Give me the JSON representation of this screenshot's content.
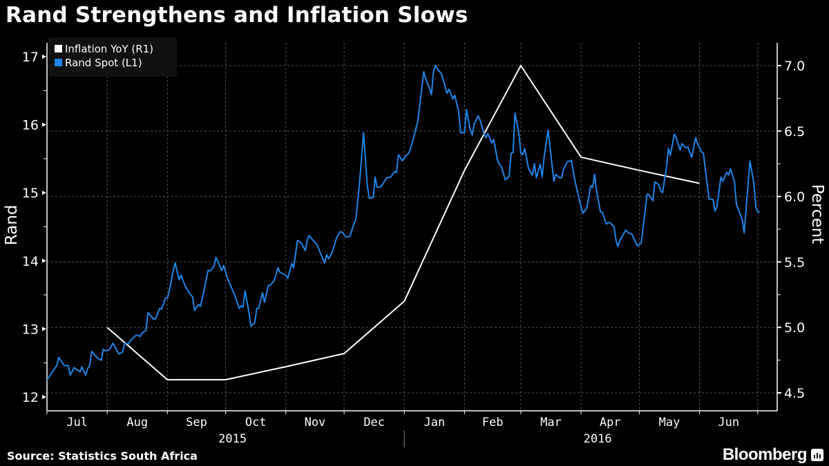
{
  "title": "Rand Strengthens and Inflation Slows",
  "source": "Source: Statistics South Africa",
  "brand": "Bloomberg",
  "chart_data": {
    "type": "line",
    "title": "Rand Strengthens and Inflation Slows",
    "x_range": [
      "2015-07-01",
      "2016-07-11"
    ],
    "x_month_labels": [
      "Jul",
      "Aug",
      "Sep",
      "Oct",
      "Nov",
      "Dec",
      "Jan",
      "Feb",
      "Mar",
      "Apr",
      "May",
      "Jun"
    ],
    "x_year_labels": [
      "2015",
      "2016"
    ],
    "y_left": {
      "label": "Rand",
      "range": [
        12,
        17
      ],
      "ticks": [
        "12",
        "13",
        "14",
        "15",
        "16",
        "17"
      ]
    },
    "y_right": {
      "label": "Percent",
      "range": [
        4.5,
        7.0
      ],
      "ticks": [
        "4.5",
        "5.0",
        "5.5",
        "6.0",
        "6.5",
        "7.0"
      ]
    },
    "grid": true,
    "legend_placement": "top-left",
    "legend": [
      "Inflation YoY (R1)",
      "Rand Spot (L1)"
    ],
    "series": [
      {
        "name": "Inflation YoY (R1)",
        "axis": "right",
        "color": "#ffffff",
        "points": [
          [
            "2015-08-01",
            5.0
          ],
          [
            "2015-09-01",
            4.6
          ],
          [
            "2015-10-01",
            4.6
          ],
          [
            "2015-11-01",
            4.7
          ],
          [
            "2015-12-01",
            4.8
          ],
          [
            "2016-01-01",
            5.2
          ],
          [
            "2016-02-01",
            6.2
          ],
          [
            "2016-03-01",
            7.0
          ],
          [
            "2016-04-01",
            6.3
          ],
          [
            "2016-05-01",
            6.2
          ],
          [
            "2016-06-01",
            6.1
          ]
        ]
      },
      {
        "name": "Rand Spot (L1)",
        "axis": "left",
        "color": "#1e86e8",
        "points": [
          [
            "2015-07-01",
            12.25
          ],
          [
            "2015-07-06",
            12.46
          ],
          [
            "2015-07-07",
            12.58
          ],
          [
            "2015-07-10",
            12.46
          ],
          [
            "2015-07-12",
            12.46
          ],
          [
            "2015-07-13",
            12.32
          ],
          [
            "2015-07-15",
            12.43
          ],
          [
            "2015-07-18",
            12.37
          ],
          [
            "2015-07-19",
            12.44
          ],
          [
            "2015-07-21",
            12.32
          ],
          [
            "2015-07-22",
            12.42
          ],
          [
            "2015-07-23",
            12.46
          ],
          [
            "2015-07-24",
            12.67
          ],
          [
            "2015-07-27",
            12.57
          ],
          [
            "2015-07-29",
            12.54
          ],
          [
            "2015-07-30",
            12.7
          ],
          [
            "2015-07-31",
            12.68
          ],
          [
            "2015-08-02",
            12.69
          ],
          [
            "2015-08-04",
            12.79
          ],
          [
            "2015-08-07",
            12.63
          ],
          [
            "2015-08-09",
            12.66
          ],
          [
            "2015-08-10",
            12.79
          ],
          [
            "2015-08-12",
            12.78
          ],
          [
            "2015-08-13",
            12.83
          ],
          [
            "2015-08-16",
            12.91
          ],
          [
            "2015-08-18",
            12.89
          ],
          [
            "2015-08-19",
            12.94
          ],
          [
            "2015-08-21",
            12.98
          ],
          [
            "2015-08-22",
            13.24
          ],
          [
            "2015-08-25",
            13.14
          ],
          [
            "2015-08-26",
            13.15
          ],
          [
            "2015-08-28",
            13.3
          ],
          [
            "2015-08-29",
            13.29
          ],
          [
            "2015-08-31",
            13.45
          ],
          [
            "2015-09-01",
            13.45
          ],
          [
            "2015-09-02",
            13.56
          ],
          [
            "2015-09-04",
            13.85
          ],
          [
            "2015-09-05",
            13.97
          ],
          [
            "2015-09-07",
            13.72
          ],
          [
            "2015-09-08",
            13.79
          ],
          [
            "2015-09-10",
            13.64
          ],
          [
            "2015-09-12",
            13.54
          ],
          [
            "2015-09-14",
            13.47
          ],
          [
            "2015-09-15",
            13.27
          ],
          [
            "2015-09-17",
            13.36
          ],
          [
            "2015-09-18",
            13.33
          ],
          [
            "2015-09-19",
            13.45
          ],
          [
            "2015-09-22",
            13.86
          ],
          [
            "2015-09-23",
            13.85
          ],
          [
            "2015-09-25",
            13.92
          ],
          [
            "2015-09-26",
            14.05
          ],
          [
            "2015-09-29",
            13.86
          ],
          [
            "2015-09-30",
            13.93
          ],
          [
            "2015-10-02",
            13.74
          ],
          [
            "2015-10-05",
            13.54
          ],
          [
            "2015-10-06",
            13.47
          ],
          [
            "2015-10-08",
            13.3
          ],
          [
            "2015-10-09",
            13.34
          ],
          [
            "2015-10-10",
            13.32
          ],
          [
            "2015-10-11",
            13.56
          ],
          [
            "2015-10-13",
            13.24
          ],
          [
            "2015-10-14",
            13.04
          ],
          [
            "2015-10-16",
            13.09
          ],
          [
            "2015-10-17",
            13.3
          ],
          [
            "2015-10-18",
            13.3
          ],
          [
            "2015-10-20",
            13.53
          ],
          [
            "2015-10-21",
            13.39
          ],
          [
            "2015-10-23",
            13.64
          ],
          [
            "2015-10-24",
            13.64
          ],
          [
            "2015-10-26",
            13.71
          ],
          [
            "2015-10-28",
            13.9
          ],
          [
            "2015-10-29",
            13.83
          ],
          [
            "2015-11-01",
            13.79
          ],
          [
            "2015-11-02",
            13.74
          ],
          [
            "2015-11-04",
            13.96
          ],
          [
            "2015-11-05",
            13.9
          ],
          [
            "2015-11-07",
            14.3
          ],
          [
            "2015-11-09",
            14.26
          ],
          [
            "2015-11-11",
            14.15
          ],
          [
            "2015-11-12",
            14.3
          ],
          [
            "2015-11-13",
            14.37
          ],
          [
            "2015-11-15",
            14.3
          ],
          [
            "2015-11-17",
            14.24
          ],
          [
            "2015-11-20",
            14.03
          ],
          [
            "2015-11-21",
            13.97
          ],
          [
            "2015-11-22",
            14.09
          ],
          [
            "2015-11-23",
            14.03
          ],
          [
            "2015-11-25",
            14.13
          ],
          [
            "2015-11-27",
            14.33
          ],
          [
            "2015-11-29",
            14.43
          ],
          [
            "2015-11-30",
            14.42
          ],
          [
            "2015-12-02",
            14.35
          ],
          [
            "2015-12-04",
            14.36
          ],
          [
            "2015-12-06",
            14.54
          ],
          [
            "2015-12-07",
            14.6
          ],
          [
            "2015-12-09",
            15.16
          ],
          [
            "2015-12-11",
            15.88
          ],
          [
            "2015-12-13",
            15.09
          ],
          [
            "2015-12-14",
            14.92
          ],
          [
            "2015-12-16",
            14.93
          ],
          [
            "2015-12-17",
            15.23
          ],
          [
            "2015-12-18",
            15.08
          ],
          [
            "2015-12-20",
            15.09
          ],
          [
            "2015-12-23",
            15.22
          ],
          [
            "2015-12-25",
            15.23
          ],
          [
            "2015-12-27",
            15.31
          ],
          [
            "2015-12-28",
            15.3
          ],
          [
            "2015-12-29",
            15.56
          ],
          [
            "2015-12-31",
            15.47
          ],
          [
            "2016-01-02",
            15.55
          ],
          [
            "2016-01-03",
            15.57
          ],
          [
            "2016-01-04",
            15.63
          ],
          [
            "2016-01-06",
            15.83
          ],
          [
            "2016-01-08",
            16.06
          ],
          [
            "2016-01-09",
            16.29
          ],
          [
            "2016-01-11",
            16.78
          ],
          [
            "2016-01-12",
            16.67
          ],
          [
            "2016-01-14",
            16.53
          ],
          [
            "2016-01-15",
            16.44
          ],
          [
            "2016-01-16",
            16.78
          ],
          [
            "2016-01-17",
            16.87
          ],
          [
            "2016-01-19",
            16.78
          ],
          [
            "2016-01-20",
            16.76
          ],
          [
            "2016-01-22",
            16.56
          ],
          [
            "2016-01-23",
            16.46
          ],
          [
            "2016-01-24",
            16.52
          ],
          [
            "2016-01-26",
            16.38
          ],
          [
            "2016-01-27",
            16.43
          ],
          [
            "2016-01-29",
            16.19
          ],
          [
            "2016-01-30",
            15.88
          ],
          [
            "2016-02-01",
            15.88
          ],
          [
            "2016-02-02",
            16.22
          ],
          [
            "2016-02-04",
            15.92
          ],
          [
            "2016-02-05",
            15.85
          ],
          [
            "2016-02-06",
            16.01
          ],
          [
            "2016-02-08",
            16.13
          ],
          [
            "2016-02-09",
            16.07
          ],
          [
            "2016-02-11",
            15.87
          ],
          [
            "2016-02-12",
            15.81
          ],
          [
            "2016-02-13",
            15.87
          ],
          [
            "2016-02-15",
            15.73
          ],
          [
            "2016-02-16",
            15.78
          ],
          [
            "2016-02-18",
            15.48
          ],
          [
            "2016-02-19",
            15.41
          ],
          [
            "2016-02-20",
            15.39
          ],
          [
            "2016-02-22",
            15.19
          ],
          [
            "2016-02-24",
            15.24
          ],
          [
            "2016-02-25",
            15.58
          ],
          [
            "2016-02-26",
            15.59
          ],
          [
            "2016-02-27",
            16.17
          ],
          [
            "2016-02-29",
            15.87
          ],
          [
            "2016-03-01",
            15.58
          ],
          [
            "2016-03-02",
            15.56
          ],
          [
            "2016-03-03",
            15.65
          ],
          [
            "2016-03-05",
            15.35
          ],
          [
            "2016-03-07",
            15.26
          ],
          [
            "2016-03-08",
            15.43
          ],
          [
            "2016-03-09",
            15.22
          ],
          [
            "2016-03-11",
            15.42
          ],
          [
            "2016-03-12",
            15.23
          ],
          [
            "2016-03-13",
            15.53
          ],
          [
            "2016-03-15",
            15.92
          ],
          [
            "2016-03-16",
            15.68
          ],
          [
            "2016-03-18",
            15.17
          ],
          [
            "2016-03-19",
            15.27
          ],
          [
            "2016-03-21",
            15.22
          ],
          [
            "2016-03-22",
            15.22
          ],
          [
            "2016-03-23",
            15.35
          ],
          [
            "2016-03-25",
            15.46
          ],
          [
            "2016-03-26",
            15.46
          ],
          [
            "2016-03-27",
            15.48
          ],
          [
            "2016-03-29",
            15.16
          ],
          [
            "2016-04-01",
            14.79
          ],
          [
            "2016-04-02",
            14.7
          ],
          [
            "2016-04-04",
            14.78
          ],
          [
            "2016-04-06",
            15.1
          ],
          [
            "2016-04-07",
            15.08
          ],
          [
            "2016-04-08",
            15.27
          ],
          [
            "2016-04-09",
            15.02
          ],
          [
            "2016-04-11",
            14.72
          ],
          [
            "2016-04-12",
            14.71
          ],
          [
            "2016-04-14",
            14.54
          ],
          [
            "2016-04-15",
            14.56
          ],
          [
            "2016-04-16",
            14.56
          ],
          [
            "2016-04-18",
            14.5
          ],
          [
            "2016-04-19",
            14.3
          ],
          [
            "2016-04-20",
            14.21
          ],
          [
            "2016-04-21",
            14.3
          ],
          [
            "2016-04-24",
            14.45
          ],
          [
            "2016-04-26",
            14.4
          ],
          [
            "2016-04-27",
            14.4
          ],
          [
            "2016-04-29",
            14.28
          ],
          [
            "2016-04-30",
            14.22
          ],
          [
            "2016-05-02",
            14.26
          ],
          [
            "2016-05-05",
            14.98
          ],
          [
            "2016-05-06",
            14.97
          ],
          [
            "2016-05-08",
            14.88
          ],
          [
            "2016-05-09",
            15.16
          ],
          [
            "2016-05-11",
            15.12
          ],
          [
            "2016-05-12",
            15.03
          ],
          [
            "2016-05-13",
            15.0
          ],
          [
            "2016-05-15",
            15.38
          ],
          [
            "2016-05-16",
            15.65
          ],
          [
            "2016-05-17",
            15.55
          ],
          [
            "2016-05-19",
            15.86
          ],
          [
            "2016-05-20",
            15.81
          ],
          [
            "2016-05-22",
            15.63
          ],
          [
            "2016-05-23",
            15.72
          ],
          [
            "2016-05-25",
            15.66
          ],
          [
            "2016-05-26",
            15.67
          ],
          [
            "2016-05-28",
            15.52
          ],
          [
            "2016-05-30",
            15.81
          ],
          [
            "2016-05-31",
            15.72
          ],
          [
            "2016-06-02",
            15.6
          ],
          [
            "2016-06-03",
            15.58
          ],
          [
            "2016-06-05",
            15.11
          ],
          [
            "2016-06-06",
            14.91
          ],
          [
            "2016-06-08",
            14.9
          ],
          [
            "2016-06-09",
            14.73
          ],
          [
            "2016-06-10",
            14.8
          ],
          [
            "2016-06-12",
            15.23
          ],
          [
            "2016-06-13",
            15.17
          ],
          [
            "2016-06-15",
            15.3
          ],
          [
            "2016-06-16",
            15.26
          ],
          [
            "2016-06-17",
            15.35
          ],
          [
            "2016-06-19",
            15.16
          ],
          [
            "2016-06-20",
            14.83
          ],
          [
            "2016-06-23",
            14.61
          ],
          [
            "2016-06-24",
            14.41
          ],
          [
            "2016-06-27",
            15.47
          ],
          [
            "2016-06-29",
            15.13
          ],
          [
            "2016-06-30",
            14.79
          ],
          [
            "2016-07-01",
            14.72
          ],
          [
            "2016-07-02",
            14.72
          ]
        ]
      }
    ]
  }
}
